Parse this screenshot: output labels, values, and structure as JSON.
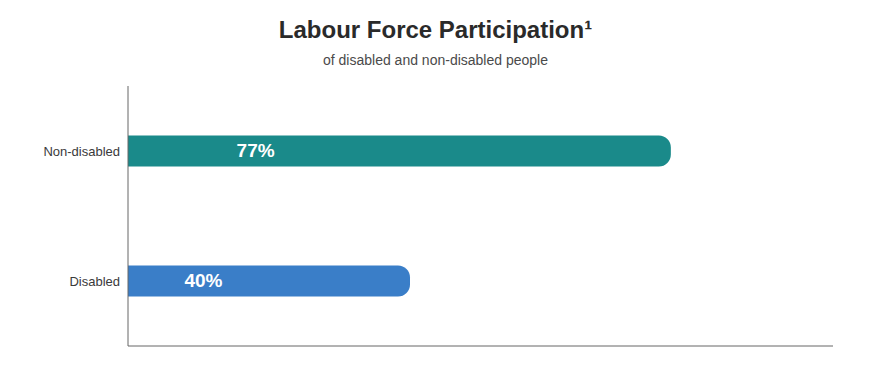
{
  "chart_data": {
    "type": "bar",
    "orientation": "horizontal",
    "title": "Labour Force Participation¹",
    "subtitle": "of disabled and non-disabled people",
    "categories": [
      "Disabled",
      "Non-disabled"
    ],
    "values": [
      40,
      77
    ],
    "value_labels": [
      "40%",
      "77%"
    ],
    "colors": [
      "#3a7ec8",
      "#1a8a8a"
    ],
    "xlim": [
      0,
      100
    ],
    "data_labels": true,
    "tick_labels": "y",
    "grid": false
  }
}
